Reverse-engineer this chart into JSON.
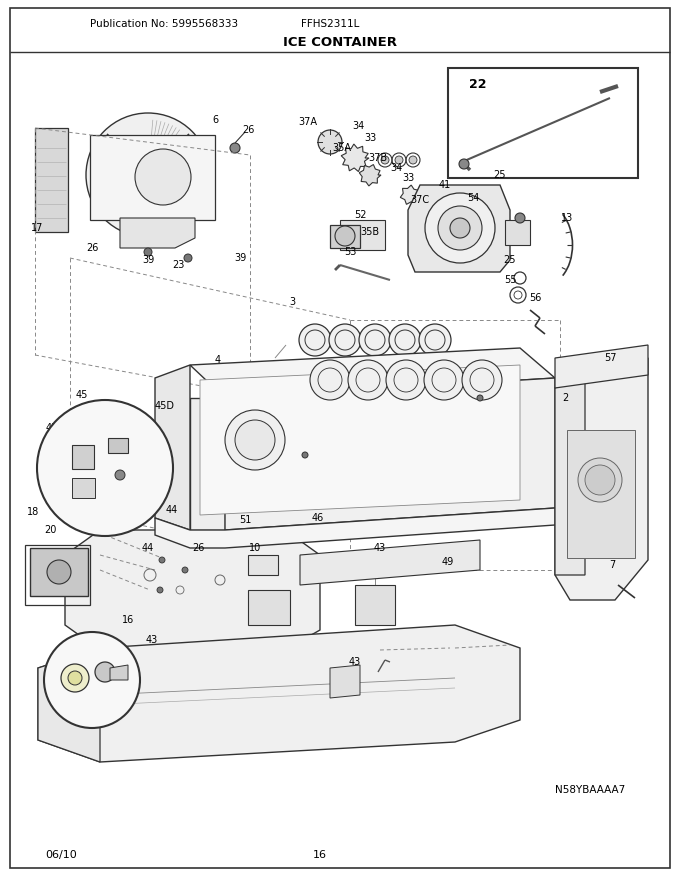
{
  "title": "ICE CONTAINER",
  "pub_no": "Publication No: 5995568333",
  "model": "FFHS2311L",
  "page": "16",
  "date": "06/10",
  "diagram_id": "N58YBAAAA7",
  "bg_color": "#ffffff",
  "text_color": "#000000",
  "fig_width": 6.8,
  "fig_height": 8.8,
  "dpi": 100,
  "line_color": "#333333",
  "dash_color": "#888888"
}
